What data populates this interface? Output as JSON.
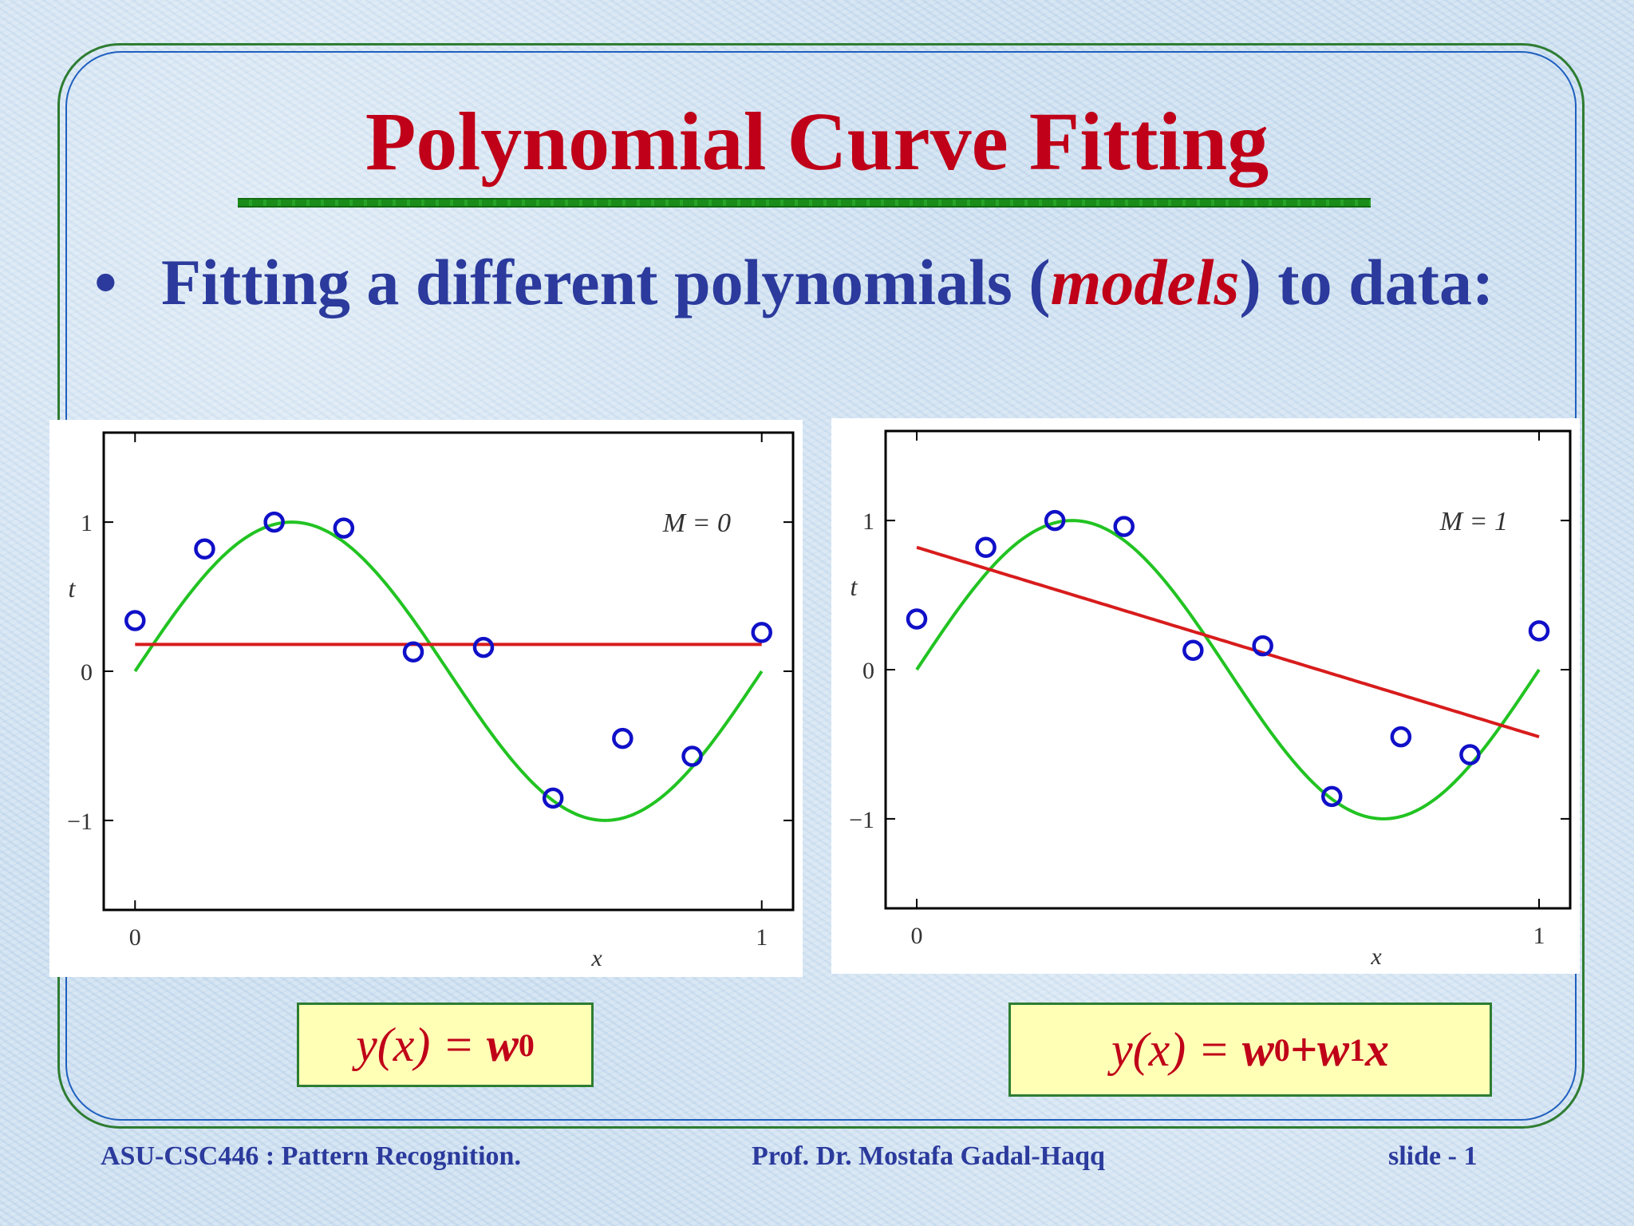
{
  "slide": {
    "title": "Polynomial Curve Fitting",
    "bullet": {
      "symbol": "•",
      "text_before": "Fitting a different polynomials (",
      "text_emph": "models",
      "text_after": ") to data:"
    }
  },
  "equations": [
    {
      "lhs": "y(x) = ",
      "w0": "w",
      "w0_sub": "0",
      "plus": "",
      "w1": "",
      "w1_sub": "",
      "x": ""
    },
    {
      "lhs": "y(x) = ",
      "w0": "w",
      "w0_sub": "0",
      "plus": "+",
      "w1": "w",
      "w1_sub": "1",
      "x": "x"
    }
  ],
  "footer": {
    "course": "ASU-CSC446 :  Pattern Recognition.",
    "author": "Prof. Dr. Mostafa Gadal-Haqq",
    "slide_number": "slide - 1"
  },
  "colors": {
    "title": "#c00018",
    "body_text": "#2b3a9c",
    "sine_curve": "#22c322",
    "fit_line": "#d81c1c",
    "data_points": "#1010c8"
  },
  "chart_data": [
    {
      "type": "scatter",
      "annotation": "M = 0",
      "xlabel": "x",
      "ylabel": "t",
      "xlim": [
        -0.05,
        1.05
      ],
      "ylim": [
        -1.6,
        1.6
      ],
      "x_ticks": [
        "0",
        "1"
      ],
      "y_ticks": [
        "1",
        "0",
        "−1"
      ],
      "series": [
        {
          "kind": "curve",
          "function": "sin(2πx)",
          "x_range": [
            0,
            1
          ]
        },
        {
          "kind": "fit",
          "order": 0,
          "coefficients": [
            0.18
          ]
        },
        {
          "kind": "points",
          "x": [
            0,
            0.111,
            0.222,
            0.333,
            0.444,
            0.556,
            0.667,
            0.778,
            0.889,
            1.0
          ],
          "y": [
            0.34,
            0.82,
            1.0,
            0.96,
            0.13,
            0.16,
            -0.85,
            -0.45,
            -0.57,
            0.26
          ]
        }
      ]
    },
    {
      "type": "scatter",
      "annotation": "M = 1",
      "xlabel": "x",
      "ylabel": "t",
      "xlim": [
        -0.05,
        1.05
      ],
      "ylim": [
        -1.6,
        1.6
      ],
      "x_ticks": [
        "0",
        "1"
      ],
      "y_ticks": [
        "1",
        "0",
        "−1"
      ],
      "series": [
        {
          "kind": "curve",
          "function": "sin(2πx)",
          "x_range": [
            0,
            1
          ]
        },
        {
          "kind": "fit",
          "order": 1,
          "coefficients": [
            0.82,
            -1.27
          ]
        },
        {
          "kind": "points",
          "x": [
            0,
            0.111,
            0.222,
            0.333,
            0.444,
            0.556,
            0.667,
            0.778,
            0.889,
            1.0
          ],
          "y": [
            0.34,
            0.82,
            1.0,
            0.96,
            0.13,
            0.16,
            -0.85,
            -0.45,
            -0.57,
            0.26
          ]
        }
      ]
    }
  ]
}
